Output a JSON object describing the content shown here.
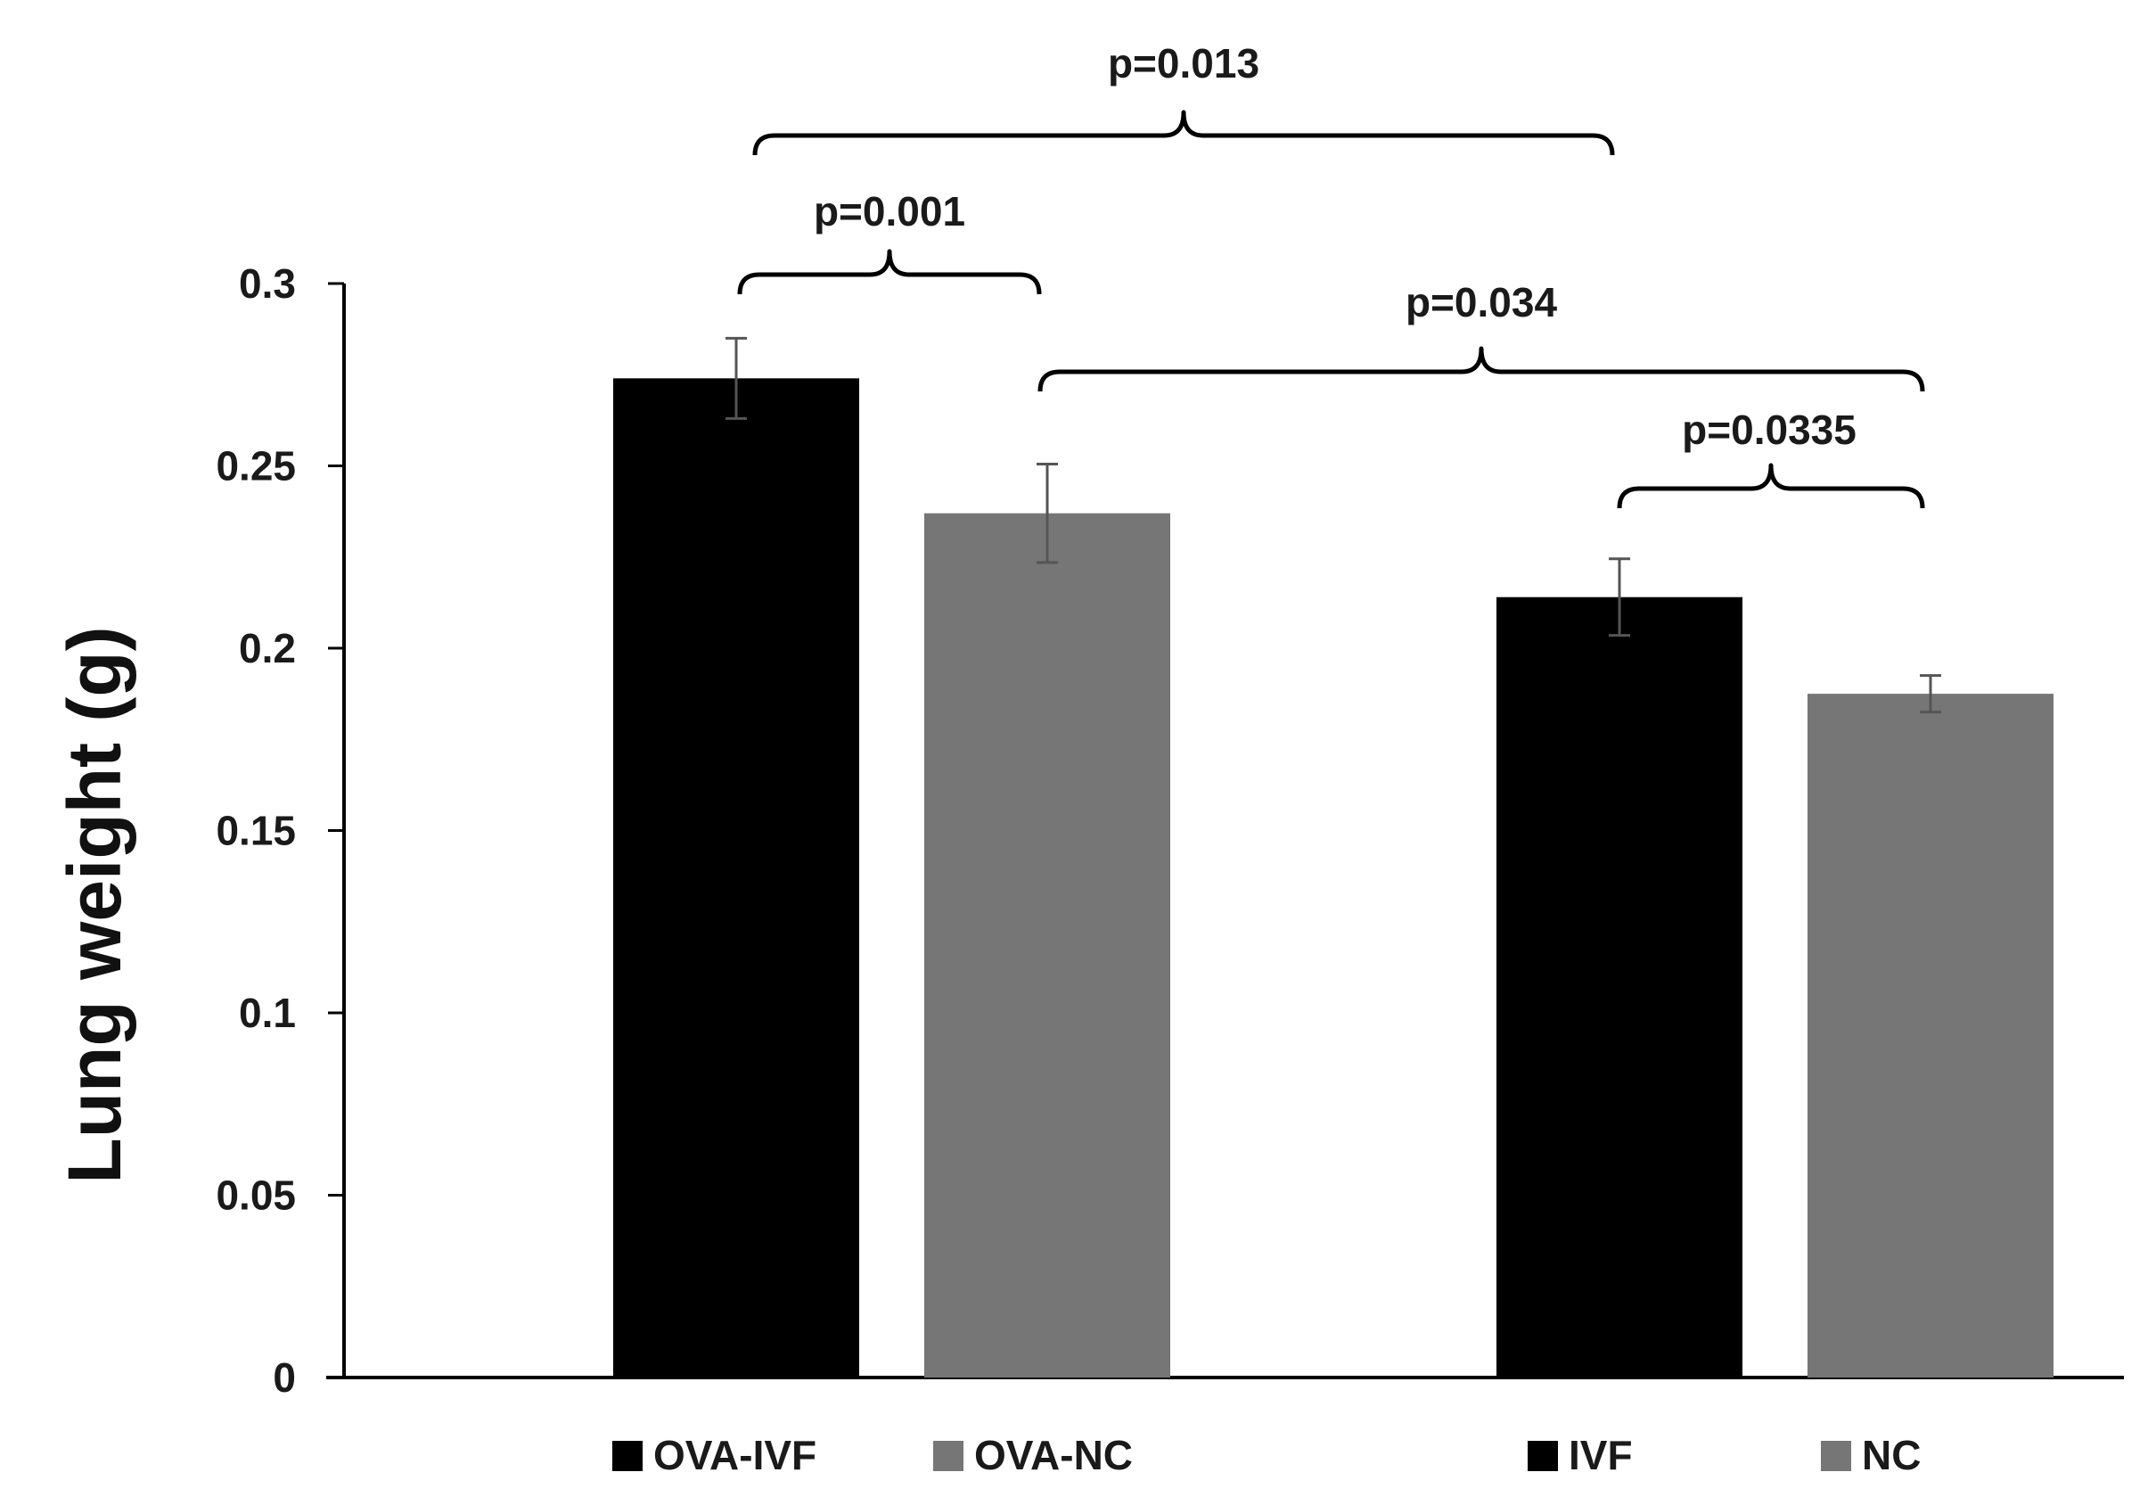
{
  "chart_data": {
    "type": "bar",
    "title": "",
    "xlabel": "",
    "ylabel": "Lung weight (g)",
    "ylim": [
      0,
      0.3
    ],
    "yticks": [
      0,
      0.05,
      0.1,
      0.15,
      0.2,
      0.25,
      0.3
    ],
    "ytick_labels": [
      "0",
      "0.05",
      "0.1",
      "0.15",
      "0.2",
      "0.25",
      "0.3"
    ],
    "grid": false,
    "bars": [
      {
        "name": "OVA-IVF",
        "value": 0.274,
        "error": 0.011,
        "color": "#000000"
      },
      {
        "name": "OVA-NC",
        "value": 0.237,
        "error": 0.0135,
        "color": "#767676"
      },
      {
        "name": "IVF",
        "value": 0.214,
        "error": 0.0105,
        "color": "#000000"
      },
      {
        "name": "NC",
        "value": 0.1875,
        "error": 0.005,
        "color": "#767676"
      }
    ],
    "legend": [
      {
        "label": "OVA-IVF",
        "color": "#000000"
      },
      {
        "label": "OVA-NC",
        "color": "#767676"
      },
      {
        "label": "IVF",
        "color": "#000000"
      },
      {
        "label": "NC",
        "color": "#767676"
      }
    ],
    "legend_placement": "bottom",
    "annotations": [
      {
        "text": "p=0.001",
        "from": "OVA-IVF",
        "to": "OVA-NC"
      },
      {
        "text": "p=0.013",
        "from": "OVA-IVF",
        "to": "IVF"
      },
      {
        "text": "p=0.034",
        "from": "OVA-NC",
        "to": "NC"
      },
      {
        "text": "p=0.0335",
        "from": "IVF",
        "to": "NC"
      }
    ]
  }
}
